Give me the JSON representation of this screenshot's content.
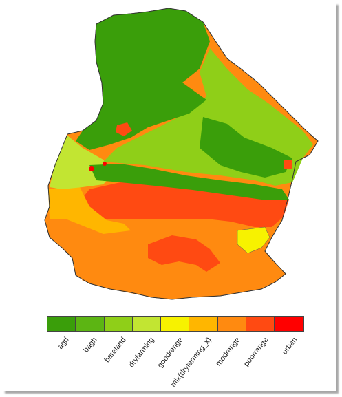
{
  "legend": {
    "classes": [
      {
        "label": "agri",
        "color": "#3a9e0a"
      },
      {
        "label": "bagh",
        "color": "#5cb513"
      },
      {
        "label": "bareland",
        "color": "#8fcf18"
      },
      {
        "label": "dryfarming",
        "color": "#c2e532"
      },
      {
        "label": "goodrange",
        "color": "#f7f200"
      },
      {
        "label": "mix(dryfarming_x)",
        "color": "#ffb600"
      },
      {
        "label": "modrange",
        "color": "#ff8a10"
      },
      {
        "label": "poorrange",
        "color": "#ff4a12"
      },
      {
        "label": "urban",
        "color": "#ff0000"
      }
    ]
  }
}
